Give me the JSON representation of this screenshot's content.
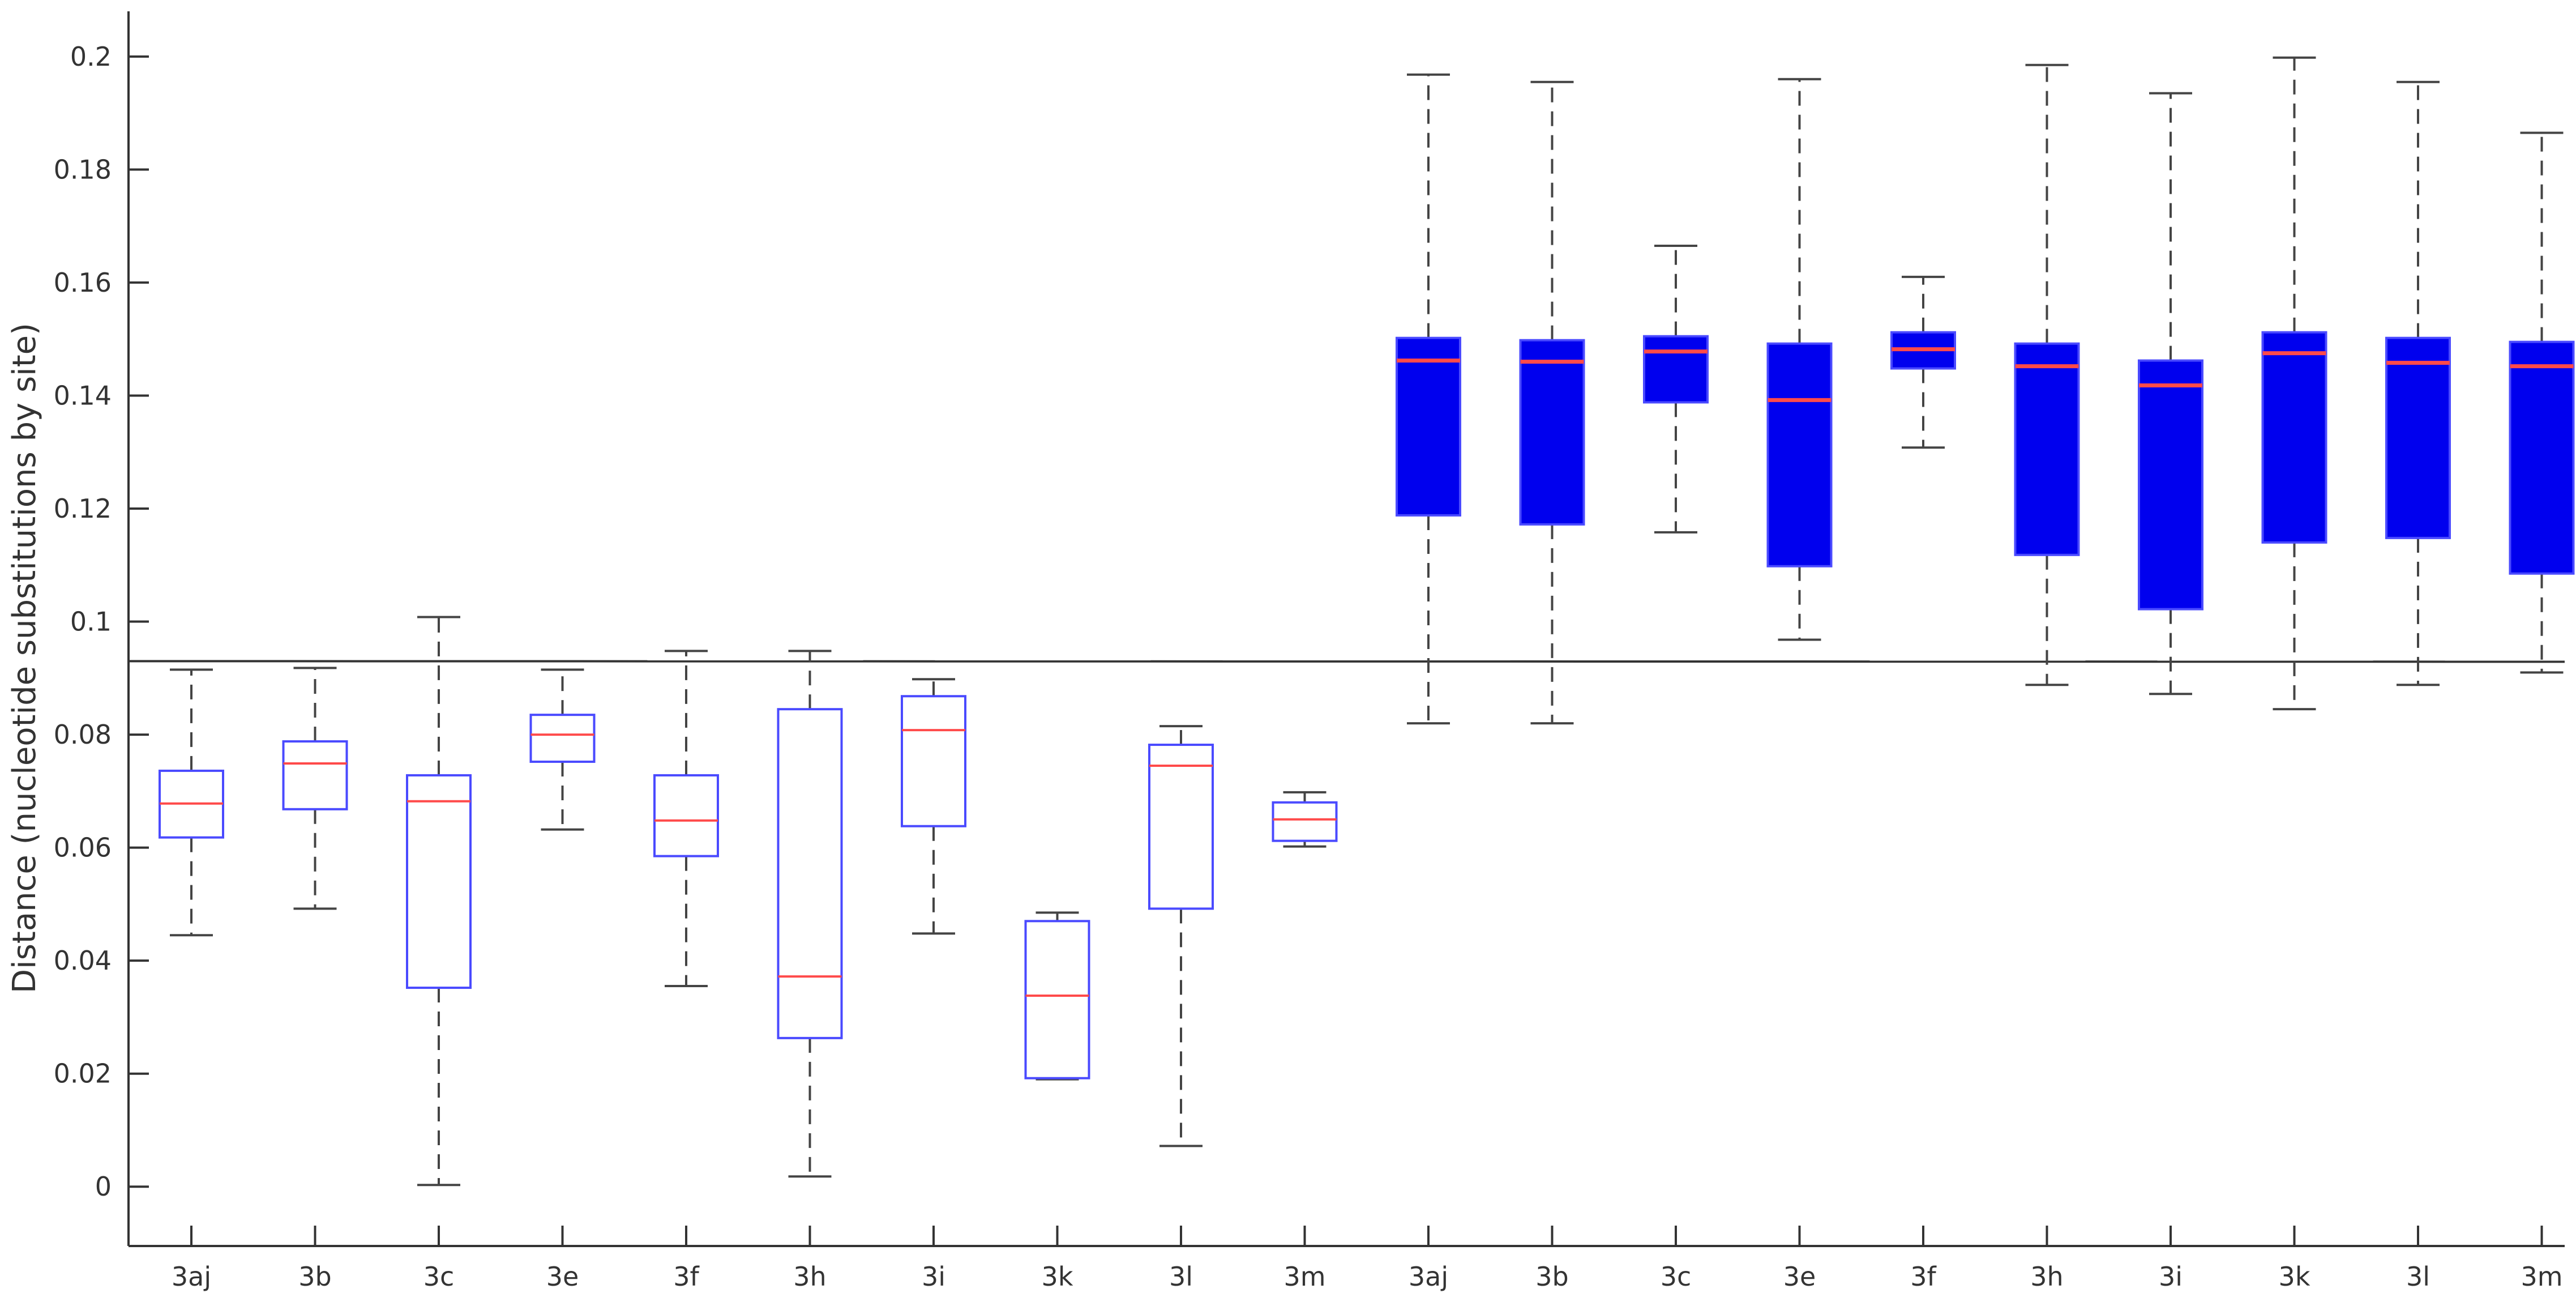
{
  "chart_data": {
    "type": "boxplot",
    "title": "",
    "xlabel": "",
    "ylabel": "Distance (nucleotide substitutions by site)",
    "ylim": [
      -0.0105,
      0.208
    ],
    "yticks": [
      0,
      0.02,
      0.04,
      0.06,
      0.08,
      0.1,
      0.12,
      0.14,
      0.16,
      0.18,
      0.2
    ],
    "ytick_labels": [
      "0",
      "0.02",
      "0.04",
      "0.06",
      "0.08",
      "0.1",
      "0.12",
      "0.14",
      "0.16",
      "0.18",
      "0.2"
    ],
    "grid": false,
    "reference_line": 0.093,
    "colors": {
      "box_edge": "#4a4aff",
      "box_fill_second_group": "#0000ee",
      "median": "#ff4a4a",
      "whisker": "#444444",
      "axis": "#333333"
    },
    "categories": [
      "3aj",
      "3b",
      "3c",
      "3e",
      "3f",
      "3h",
      "3i",
      "3k",
      "3l",
      "3m",
      "3aj",
      "3b",
      "3c",
      "3e",
      "3f",
      "3h",
      "3i",
      "3k",
      "3l",
      "3m"
    ],
    "boxes": [
      {
        "label": "3aj",
        "min": 0.0445,
        "q1": 0.0618,
        "median": 0.0678,
        "q3": 0.0736,
        "max": 0.0915,
        "filled": false
      },
      {
        "label": "3b",
        "min": 0.0492,
        "q1": 0.0668,
        "median": 0.0749,
        "q3": 0.0788,
        "max": 0.0918,
        "filled": false
      },
      {
        "label": "3c",
        "min": 0.0003,
        "q1": 0.0352,
        "median": 0.0682,
        "q3": 0.0728,
        "max": 0.1008,
        "filled": false
      },
      {
        "label": "3e",
        "min": 0.0632,
        "q1": 0.0752,
        "median": 0.08,
        "q3": 0.0835,
        "max": 0.0915,
        "filled": false
      },
      {
        "label": "3f",
        "min": 0.0355,
        "q1": 0.0585,
        "median": 0.0648,
        "q3": 0.0728,
        "max": 0.0948,
        "filled": false
      },
      {
        "label": "3h",
        "min": 0.0018,
        "q1": 0.0263,
        "median": 0.0372,
        "q3": 0.0845,
        "max": 0.0948,
        "filled": false
      },
      {
        "label": "3i",
        "min": 0.0448,
        "q1": 0.0638,
        "median": 0.0808,
        "q3": 0.0868,
        "max": 0.0898,
        "filled": false
      },
      {
        "label": "3k",
        "min": 0.019,
        "q1": 0.0192,
        "median": 0.0338,
        "q3": 0.047,
        "max": 0.0485,
        "filled": false
      },
      {
        "label": "3l",
        "min": 0.0072,
        "q1": 0.0492,
        "median": 0.0745,
        "q3": 0.0782,
        "max": 0.0815,
        "filled": false
      },
      {
        "label": "3m",
        "min": 0.0602,
        "q1": 0.0612,
        "median": 0.065,
        "q3": 0.068,
        "max": 0.0698,
        "filled": false
      },
      {
        "label": "3aj",
        "min": 0.082,
        "q1": 0.1188,
        "median": 0.1462,
        "q3": 0.1502,
        "max": 0.1968,
        "filled": true
      },
      {
        "label": "3b",
        "min": 0.082,
        "q1": 0.1172,
        "median": 0.146,
        "q3": 0.1498,
        "max": 0.1955,
        "filled": true
      },
      {
        "label": "3c",
        "min": 0.1158,
        "q1": 0.1388,
        "median": 0.1478,
        "q3": 0.1505,
        "max": 0.1665,
        "filled": true
      },
      {
        "label": "3e",
        "min": 0.0968,
        "q1": 0.1098,
        "median": 0.1392,
        "q3": 0.1492,
        "max": 0.196,
        "filled": true
      },
      {
        "label": "3f",
        "min": 0.1308,
        "q1": 0.1448,
        "median": 0.1482,
        "q3": 0.1512,
        "max": 0.161,
        "filled": true
      },
      {
        "label": "3h",
        "min": 0.0888,
        "q1": 0.1118,
        "median": 0.1452,
        "q3": 0.1492,
        "max": 0.1985,
        "filled": true
      },
      {
        "label": "3i",
        "min": 0.0872,
        "q1": 0.1022,
        "median": 0.1418,
        "q3": 0.1462,
        "max": 0.1935,
        "filled": true
      },
      {
        "label": "3k",
        "min": 0.0845,
        "q1": 0.114,
        "median": 0.1475,
        "q3": 0.1512,
        "max": 0.1998,
        "filled": true
      },
      {
        "label": "3l",
        "min": 0.0888,
        "q1": 0.1148,
        "median": 0.1458,
        "q3": 0.1502,
        "max": 0.1955,
        "filled": true
      },
      {
        "label": "3m",
        "min": 0.091,
        "q1": 0.1085,
        "median": 0.1452,
        "q3": 0.1495,
        "max": 0.1865,
        "filled": true
      }
    ]
  }
}
